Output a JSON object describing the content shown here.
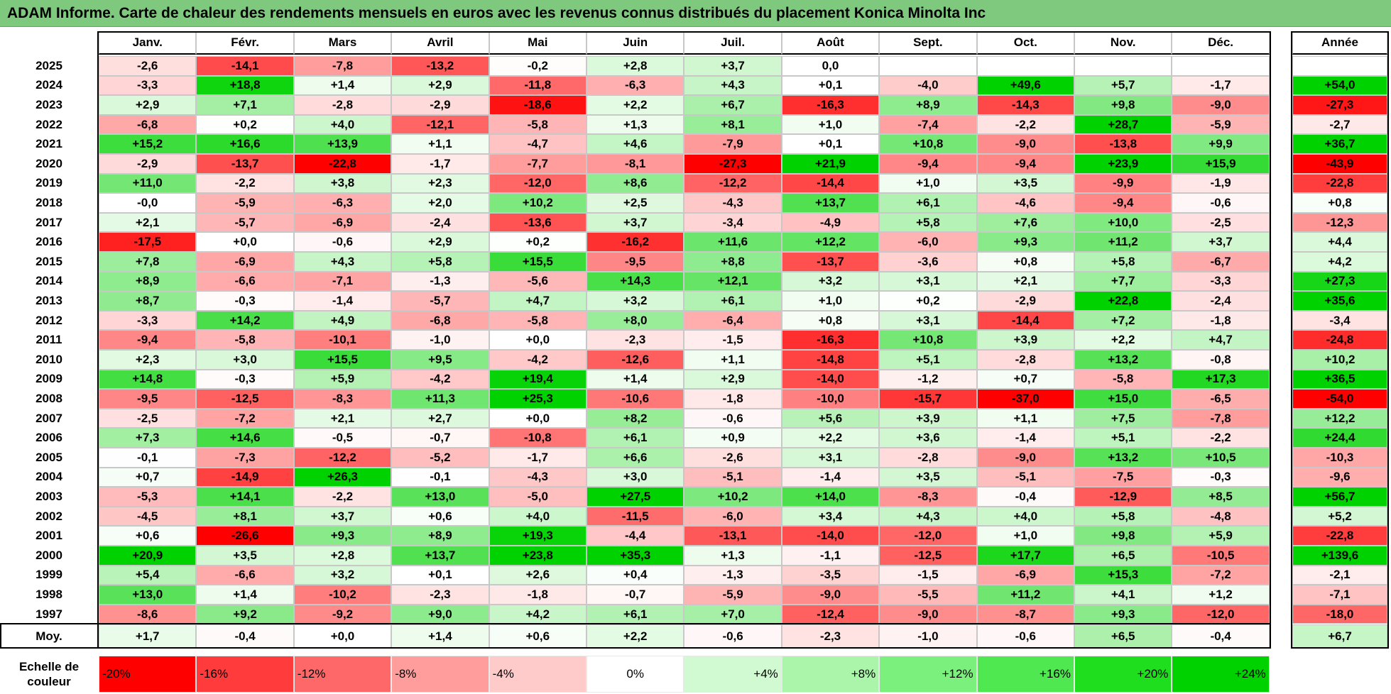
{
  "title": "ADAM Informe. Carte de chaleur des rendements mensuels en euros avec les revenus connus distribués du placement Konica Minolta Inc",
  "chart_data": {
    "type": "heatmap",
    "title": "ADAM Informe. Carte de chaleur des rendements mensuels en euros avec les revenus connus distribués du placement Konica Minolta Inc",
    "columns": [
      "Janv.",
      "Févr.",
      "Mars",
      "Avril",
      "Mai",
      "Juin",
      "Juil.",
      "Août",
      "Sept.",
      "Oct.",
      "Nov.",
      "Déc."
    ],
    "annual_header": "Année",
    "rows": [
      {
        "year": "2025",
        "values": [
          "-2,6",
          "-14,1",
          "-7,8",
          "-13,2",
          "-0,2",
          "+2,8",
          "+3,7",
          "0,0",
          "",
          "",
          "",
          ""
        ],
        "annual": ""
      },
      {
        "year": "2024",
        "values": [
          "-3,3",
          "+18,8",
          "+1,4",
          "+2,9",
          "-11,8",
          "-6,3",
          "+4,3",
          "+0,1",
          "-4,0",
          "+49,6",
          "+5,7",
          "-1,7"
        ],
        "annual": "+54,0"
      },
      {
        "year": "2023",
        "values": [
          "+2,9",
          "+7,1",
          "-2,8",
          "-2,9",
          "-18,6",
          "+2,2",
          "+6,7",
          "-16,3",
          "+8,9",
          "-14,3",
          "+9,8",
          "-9,0"
        ],
        "annual": "-27,3"
      },
      {
        "year": "2022",
        "values": [
          "-6,8",
          "+0,2",
          "+4,0",
          "-12,1",
          "-5,8",
          "+1,3",
          "+8,1",
          "+1,0",
          "-7,4",
          "-2,2",
          "+28,7",
          "-5,9"
        ],
        "annual": "-2,7"
      },
      {
        "year": "2021",
        "values": [
          "+15,2",
          "+16,6",
          "+13,9",
          "+1,1",
          "-4,7",
          "+4,6",
          "-7,9",
          "+0,1",
          "+10,8",
          "-9,0",
          "-13,8",
          "+9,9"
        ],
        "annual": "+36,7"
      },
      {
        "year": "2020",
        "values": [
          "-2,9",
          "-13,7",
          "-22,8",
          "-1,7",
          "-7,7",
          "-8,1",
          "-27,3",
          "+21,9",
          "-9,4",
          "-9,4",
          "+23,9",
          "+15,9"
        ],
        "annual": "-43,9"
      },
      {
        "year": "2019",
        "values": [
          "+11,0",
          "-2,2",
          "+3,8",
          "+2,3",
          "-12,0",
          "+8,6",
          "-12,2",
          "-14,4",
          "+1,0",
          "+3,5",
          "-9,9",
          "-1,9"
        ],
        "annual": "-22,8"
      },
      {
        "year": "2018",
        "values": [
          "-0,0",
          "-5,9",
          "-6,3",
          "+2,0",
          "+10,2",
          "+2,5",
          "-4,3",
          "+13,7",
          "+6,1",
          "-4,6",
          "-9,4",
          "-0,6"
        ],
        "annual": "+0,8"
      },
      {
        "year": "2017",
        "values": [
          "+2,1",
          "-5,7",
          "-6,9",
          "-2,4",
          "-13,6",
          "+3,7",
          "-3,4",
          "-4,9",
          "+5,8",
          "+7,6",
          "+10,0",
          "-2,5"
        ],
        "annual": "-12,3"
      },
      {
        "year": "2016",
        "values": [
          "-17,5",
          "+0,0",
          "-0,6",
          "+2,9",
          "+0,2",
          "-16,2",
          "+11,6",
          "+12,2",
          "-6,0",
          "+9,3",
          "+11,2",
          "+3,7"
        ],
        "annual": "+4,4"
      },
      {
        "year": "2015",
        "values": [
          "+7,8",
          "-6,9",
          "+4,3",
          "+5,8",
          "+15,5",
          "-9,5",
          "+8,8",
          "-13,7",
          "-3,6",
          "+0,8",
          "+5,8",
          "-6,7"
        ],
        "annual": "+4,2"
      },
      {
        "year": "2014",
        "values": [
          "+8,9",
          "-6,6",
          "-7,1",
          "-1,3",
          "-5,6",
          "+14,3",
          "+12,1",
          "+3,2",
          "+3,1",
          "+2,1",
          "+7,7",
          "-3,3"
        ],
        "annual": "+27,3"
      },
      {
        "year": "2013",
        "values": [
          "+8,7",
          "-0,3",
          "-1,4",
          "-5,7",
          "+4,7",
          "+3,2",
          "+6,1",
          "+1,0",
          "+0,2",
          "-2,9",
          "+22,8",
          "-2,4"
        ],
        "annual": "+35,6"
      },
      {
        "year": "2012",
        "values": [
          "-3,3",
          "+14,2",
          "+4,9",
          "-6,8",
          "-5,8",
          "+8,0",
          "-6,4",
          "+0,8",
          "+3,1",
          "-14,4",
          "+7,2",
          "-1,8"
        ],
        "annual": "-3,4"
      },
      {
        "year": "2011",
        "values": [
          "-9,4",
          "-5,8",
          "-10,1",
          "-1,0",
          "+0,0",
          "-2,3",
          "-1,5",
          "-16,3",
          "+10,8",
          "+3,9",
          "+2,2",
          "+4,7"
        ],
        "annual": "-24,8"
      },
      {
        "year": "2010",
        "values": [
          "+2,3",
          "+3,0",
          "+15,5",
          "+9,5",
          "-4,2",
          "-12,6",
          "+1,1",
          "-14,8",
          "+5,1",
          "-2,8",
          "+13,2",
          "-0,8"
        ],
        "annual": "+10,2"
      },
      {
        "year": "2009",
        "values": [
          "+14,8",
          "-0,3",
          "+5,9",
          "-4,2",
          "+19,4",
          "+1,4",
          "+2,9",
          "-14,0",
          "-1,2",
          "+0,7",
          "-5,8",
          "+17,3"
        ],
        "annual": "+36,5"
      },
      {
        "year": "2008",
        "values": [
          "-9,5",
          "-12,5",
          "-8,3",
          "+11,3",
          "+25,3",
          "-10,6",
          "-1,8",
          "-10,0",
          "-15,7",
          "-37,0",
          "+15,0",
          "-6,5"
        ],
        "annual": "-54,0"
      },
      {
        "year": "2007",
        "values": [
          "-2,5",
          "-7,2",
          "+2,1",
          "+2,7",
          "+0,0",
          "+8,2",
          "-0,6",
          "+5,6",
          "+3,9",
          "+1,1",
          "+7,5",
          "-7,8"
        ],
        "annual": "+12,2"
      },
      {
        "year": "2006",
        "values": [
          "+7,3",
          "+14,6",
          "-0,5",
          "-0,7",
          "-10,8",
          "+6,1",
          "+0,9",
          "+2,2",
          "+3,6",
          "-1,4",
          "+5,1",
          "-2,2"
        ],
        "annual": "+24,4"
      },
      {
        "year": "2005",
        "values": [
          "-0,1",
          "-7,3",
          "-12,2",
          "-5,2",
          "-1,7",
          "+6,6",
          "-2,6",
          "+3,1",
          "-2,8",
          "-9,0",
          "+13,2",
          "+10,5"
        ],
        "annual": "-10,3"
      },
      {
        "year": "2004",
        "values": [
          "+0,7",
          "-14,9",
          "+26,3",
          "-0,1",
          "-4,3",
          "+3,0",
          "-5,1",
          "-1,4",
          "+3,5",
          "-5,1",
          "-7,5",
          "-0,3"
        ],
        "annual": "-9,6"
      },
      {
        "year": "2003",
        "values": [
          "-5,3",
          "+14,1",
          "-2,2",
          "+13,0",
          "-5,0",
          "+27,5",
          "+10,2",
          "+14,0",
          "-8,3",
          "-0,4",
          "-12,9",
          "+8,5"
        ],
        "annual": "+56,7"
      },
      {
        "year": "2002",
        "values": [
          "-4,5",
          "+8,1",
          "+3,7",
          "+0,6",
          "+4,0",
          "-11,5",
          "-6,0",
          "+3,4",
          "+4,3",
          "+4,0",
          "+5,8",
          "-4,8"
        ],
        "annual": "+5,2"
      },
      {
        "year": "2001",
        "values": [
          "+0,6",
          "-26,6",
          "+9,3",
          "+8,9",
          "+19,3",
          "-4,4",
          "-13,1",
          "-14,0",
          "-12,0",
          "+1,0",
          "+9,8",
          "+5,9"
        ],
        "annual": "-22,8"
      },
      {
        "year": "2000",
        "values": [
          "+20,9",
          "+3,5",
          "+2,8",
          "+13,7",
          "+23,8",
          "+35,3",
          "+1,3",
          "-1,1",
          "-12,5",
          "+17,7",
          "+6,5",
          "-10,5"
        ],
        "annual": "+139,6"
      },
      {
        "year": "1999",
        "values": [
          "+5,4",
          "-6,6",
          "+3,2",
          "+0,1",
          "+2,6",
          "+0,4",
          "-1,3",
          "-3,5",
          "-1,5",
          "-6,9",
          "+15,3",
          "-7,2"
        ],
        "annual": "-2,1"
      },
      {
        "year": "1998",
        "values": [
          "+13,0",
          "+1,4",
          "-10,2",
          "-2,3",
          "-1,8",
          "-0,7",
          "-5,9",
          "-9,0",
          "-5,5",
          "+11,2",
          "+4,1",
          "+1,2"
        ],
        "annual": "-7,1"
      },
      {
        "year": "1997",
        "values": [
          "-8,6",
          "+9,2",
          "-9,2",
          "+9,0",
          "+4,2",
          "+6,1",
          "+7,0",
          "-12,4",
          "-9,0",
          "-8,7",
          "+9,3",
          "-12,0"
        ],
        "annual": "-18,0"
      }
    ],
    "average": {
      "label": "Moy.",
      "values": [
        "+1,7",
        "-0,4",
        "+0,0",
        "+1,4",
        "+0,6",
        "+2,2",
        "-0,6",
        "-2,3",
        "-1,0",
        "-0,6",
        "+6,5",
        "-0,4"
      ],
      "annual": "+6,7"
    },
    "legend": {
      "title_line1": "Echelle de",
      "title_line2": "couleur",
      "steps": [
        {
          "label": "-20%",
          "value": -20,
          "color": "#ff0000"
        },
        {
          "label": "-16%",
          "value": -16,
          "color": "#ff3b3b"
        },
        {
          "label": "-12%",
          "value": -12,
          "color": "#ff6868"
        },
        {
          "label": "-8%",
          "value": -8,
          "color": "#ff9c9c"
        },
        {
          "label": "-4%",
          "value": -4,
          "color": "#ffcaca"
        },
        {
          "label": "0%",
          "value": 0,
          "color": "#ffffff"
        },
        {
          "label": "+4%",
          "value": 4,
          "color": "#d2fad2"
        },
        {
          "label": "+8%",
          "value": 8,
          "color": "#aaf5aa"
        },
        {
          "label": "+12%",
          "value": 12,
          "color": "#7cf07c"
        },
        {
          "label": "+16%",
          "value": 16,
          "color": "#50e850"
        },
        {
          "label": "+20%",
          "value": 20,
          "color": "#1ede1e"
        },
        {
          "label": "+24%",
          "value": 24,
          "color": "#00d200"
        }
      ]
    },
    "colors": {
      "negative_max": "#ff0000",
      "neutral": "#ffffff",
      "positive_max": "#00d200",
      "title_bar": "#7fc97f"
    }
  }
}
